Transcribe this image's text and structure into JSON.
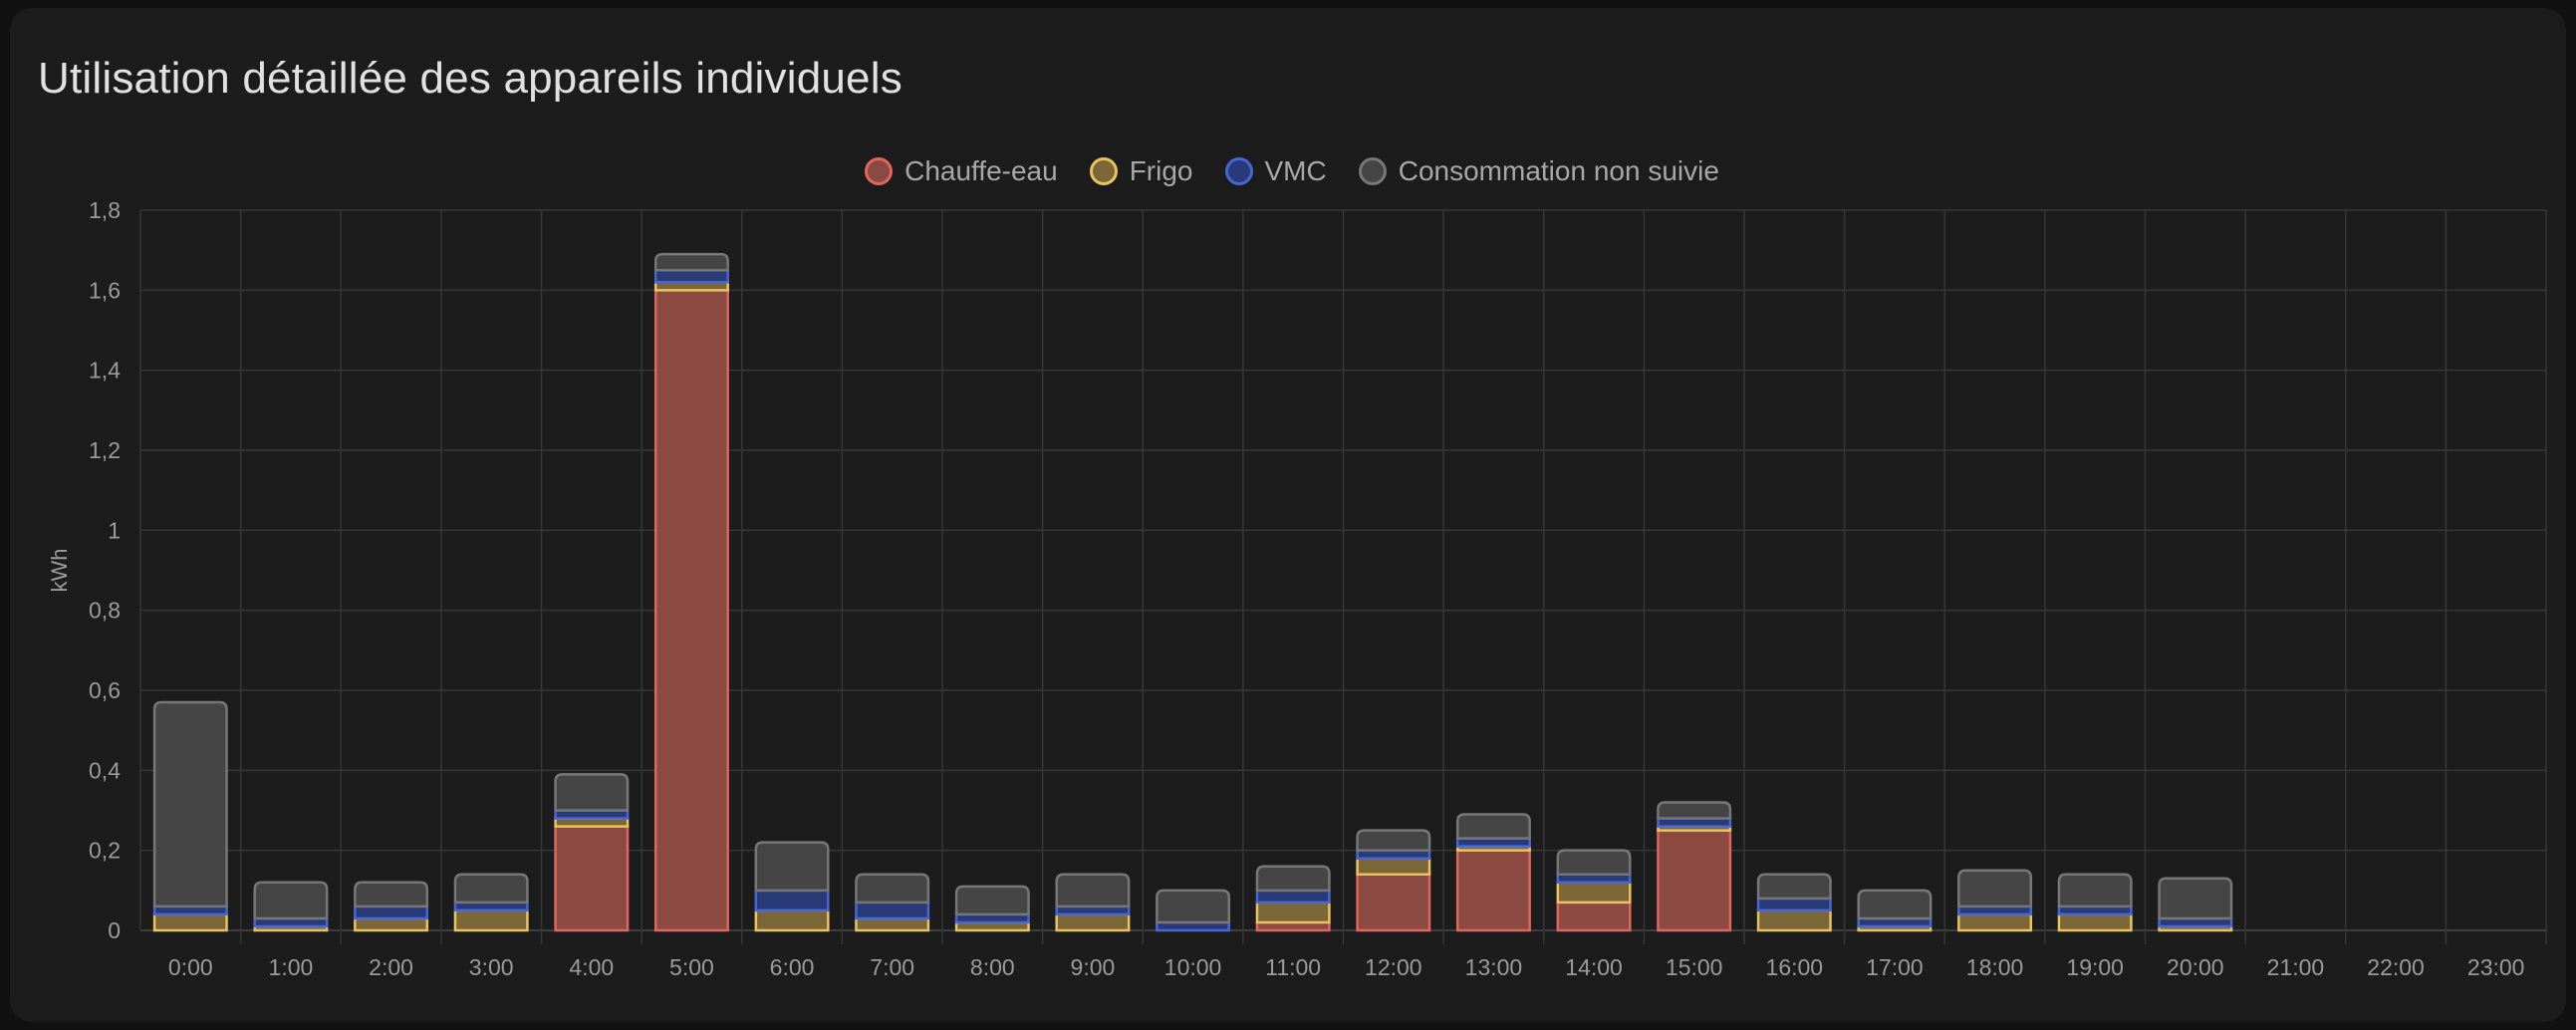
{
  "card": {
    "title": "Utilisation détaillée des appareils individuels"
  },
  "chart_data": {
    "type": "bar",
    "stacked": true,
    "title": "Utilisation détaillée des appareils individuels",
    "xlabel": "",
    "ylabel": "kWh",
    "ylim": [
      0,
      1.8
    ],
    "yticks": [
      0,
      0.2,
      0.4,
      0.6,
      0.8,
      1,
      1.2,
      1.4,
      1.6,
      1.8
    ],
    "ytick_labels": [
      "0",
      "0,2",
      "0,4",
      "0,6",
      "0,8",
      "1",
      "1,2",
      "1,4",
      "1,6",
      "1,8"
    ],
    "grid": true,
    "legend_position": "top-center",
    "categories": [
      "0:00",
      "1:00",
      "2:00",
      "3:00",
      "4:00",
      "5:00",
      "6:00",
      "7:00",
      "8:00",
      "9:00",
      "10:00",
      "11:00",
      "12:00",
      "13:00",
      "14:00",
      "15:00",
      "16:00",
      "17:00",
      "18:00",
      "19:00",
      "20:00",
      "21:00",
      "22:00",
      "23:00"
    ],
    "series": [
      {
        "name": "Chauffe-eau",
        "fill": "#8b4a42",
        "stroke": "#e0665e",
        "values": [
          0,
          0,
          0,
          0,
          0.26,
          1.6,
          0,
          0,
          0,
          0,
          0,
          0.02,
          0.14,
          0.2,
          0.07,
          0.25,
          0,
          0,
          0,
          0,
          0,
          0,
          0,
          0
        ]
      },
      {
        "name": "Frigo",
        "fill": "#7a6637",
        "stroke": "#e8c35e",
        "values": [
          0.04,
          0.01,
          0.03,
          0.05,
          0.02,
          0.02,
          0.05,
          0.03,
          0.02,
          0.04,
          0,
          0.05,
          0.04,
          0.01,
          0.05,
          0.01,
          0.05,
          0.01,
          0.04,
          0.04,
          0.01,
          0,
          0,
          0
        ]
      },
      {
        "name": "VMC",
        "fill": "#283a78",
        "stroke": "#4767d6",
        "values": [
          0.02,
          0.02,
          0.03,
          0.02,
          0.02,
          0.03,
          0.05,
          0.04,
          0.02,
          0.02,
          0.02,
          0.03,
          0.02,
          0.02,
          0.02,
          0.02,
          0.03,
          0.02,
          0.02,
          0.02,
          0.02,
          0,
          0,
          0
        ]
      },
      {
        "name": "Consommation non suivie",
        "fill": "#454545",
        "stroke": "#777777",
        "values": [
          0.51,
          0.09,
          0.06,
          0.07,
          0.09,
          0.04,
          0.12,
          0.07,
          0.07,
          0.08,
          0.08,
          0.06,
          0.05,
          0.06,
          0.06,
          0.04,
          0.06,
          0.07,
          0.09,
          0.08,
          0.1,
          0,
          0,
          0
        ]
      }
    ]
  }
}
